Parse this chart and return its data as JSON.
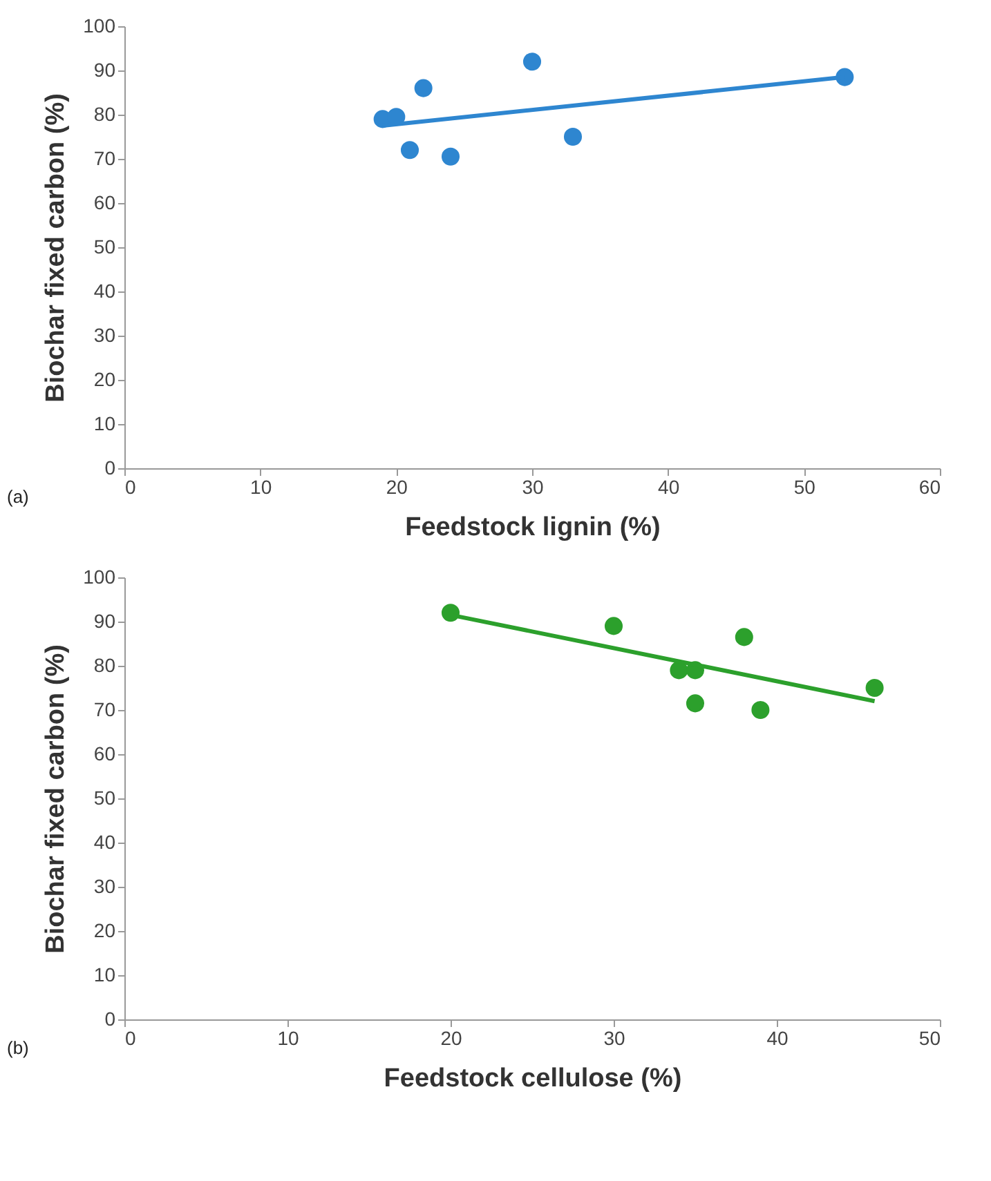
{
  "chart_data": [
    {
      "type": "scatter",
      "xlabel": "Feedstock lignin (%)",
      "ylabel": "Biochar fixed carbon (%)",
      "annotations": [
        "(a)"
      ],
      "xlim": [
        0,
        60
      ],
      "xticks": [
        0,
        10,
        20,
        30,
        40,
        50,
        60
      ],
      "ylim": [
        0,
        100
      ],
      "yticks": [
        0,
        10,
        20,
        30,
        40,
        50,
        60,
        70,
        80,
        90,
        100
      ],
      "grid": false,
      "series": [
        {
          "color": "#2e86d0",
          "marker": "circle",
          "x": [
            19,
            20,
            22,
            21,
            24,
            30,
            33,
            53
          ],
          "values": [
            79,
            79.5,
            86,
            72,
            70.5,
            92,
            75,
            88.5
          ]
        },
        {
          "type": "line",
          "color": "#2e86d0",
          "marker": "none",
          "x": [
            19,
            53
          ],
          "values": [
            77.5,
            88.5
          ]
        }
      ]
    },
    {
      "type": "scatter",
      "xlabel": "Feedstock cellulose (%)",
      "ylabel": "Biochar fixed carbon (%)",
      "annotations": [
        "(b)"
      ],
      "xlim": [
        0,
        50
      ],
      "xticks": [
        0,
        10,
        20,
        30,
        40,
        50
      ],
      "ylim": [
        0,
        100
      ],
      "yticks": [
        0,
        10,
        20,
        30,
        40,
        50,
        60,
        70,
        80,
        90,
        100
      ],
      "grid": false,
      "series": [
        {
          "color": "#2ca02c",
          "marker": "circle",
          "x": [
            20,
            30,
            34,
            35,
            35,
            38,
            39,
            46
          ],
          "values": [
            92,
            89,
            79,
            79,
            71.5,
            86.5,
            70,
            75
          ]
        },
        {
          "type": "line",
          "color": "#2ca02c",
          "marker": "none",
          "x": [
            20,
            46
          ],
          "values": [
            91.5,
            72
          ]
        }
      ]
    }
  ]
}
